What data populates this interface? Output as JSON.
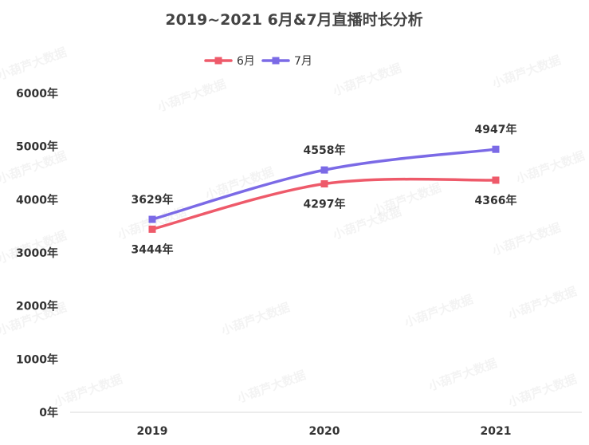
{
  "chart_data": {
    "type": "line",
    "title": "2019~2021 6月&7月直播时长分析",
    "categories": [
      "2019",
      "2020",
      "2021"
    ],
    "series": [
      {
        "name": "6月",
        "values": [
          3444,
          4297,
          4366
        ],
        "color": "#ee5a6a",
        "labels": [
          "3444年",
          "4297年",
          "4366年"
        ]
      },
      {
        "name": "7月",
        "values": [
          3629,
          4558,
          4947
        ],
        "color": "#7b6ae6",
        "labels": [
          "3629年",
          "4558年",
          "4947年"
        ]
      }
    ],
    "ylim": [
      0,
      6000
    ],
    "yticks": [
      0,
      1000,
      2000,
      3000,
      4000,
      5000,
      6000
    ],
    "ytick_labels": [
      "0年",
      "1000年",
      "2000年",
      "3000年",
      "4000年",
      "5000年",
      "6000年"
    ],
    "legend_position": "top-center",
    "grid": false,
    "smooth": true,
    "watermark": "小葫芦大数据"
  }
}
